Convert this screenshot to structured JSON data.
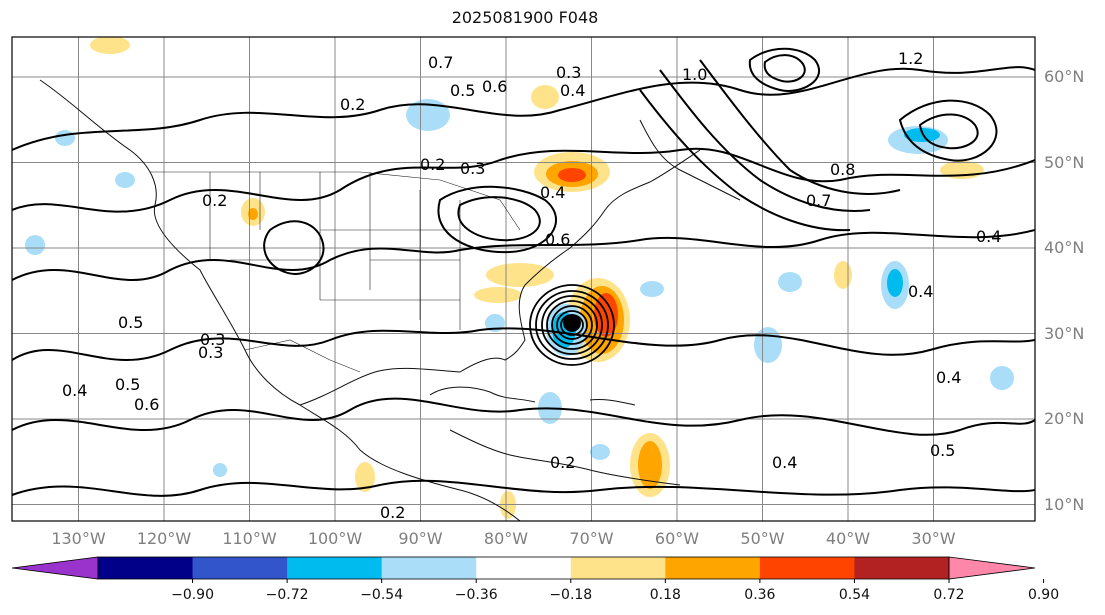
{
  "title": "2025081900 F048",
  "map": {
    "lat_labels": [
      {
        "text": "60°N",
        "lat": 60
      },
      {
        "text": "50°N",
        "lat": 50
      },
      {
        "text": "40°N",
        "lat": 40
      },
      {
        "text": "30°N",
        "lat": 30
      },
      {
        "text": "20°N",
        "lat": 20
      },
      {
        "text": "10°N",
        "lat": 10
      }
    ],
    "lon_labels": [
      {
        "text": "130°W",
        "lon": -130
      },
      {
        "text": "120°W",
        "lon": -120
      },
      {
        "text": "110°W",
        "lon": -110
      },
      {
        "text": "100°W",
        "lon": -100
      },
      {
        "text": "90°W",
        "lon": -90
      },
      {
        "text": "80°W",
        "lon": -80
      },
      {
        "text": "70°W",
        "lon": -70
      },
      {
        "text": "60°W",
        "lon": -60
      },
      {
        "text": "50°W",
        "lon": -50
      },
      {
        "text": "40°W",
        "lon": -40
      },
      {
        "text": "30°W",
        "lon": -30
      }
    ],
    "contour_labels": [
      "0.7",
      "0.5",
      "0.6",
      "0.3",
      "0.4",
      "1.0",
      "1.2",
      "0.2",
      "0.3",
      "0.4",
      "0.8",
      "0.7",
      "0.4",
      "0.5",
      "0.4",
      "0.3",
      "0.2",
      "0.6",
      "0.5",
      "0.4",
      "0.2",
      "0.2",
      "0.4",
      "0.5",
      "0.6",
      "0.4",
      "0.3",
      "0.2"
    ]
  },
  "colorbar": {
    "ticks": [
      "−0.90",
      "−0.72",
      "−0.54",
      "−0.36",
      "−0.18",
      "0.18",
      "0.36",
      "0.54",
      "0.72",
      "0.90"
    ],
    "low_extend_color": "#9933cc",
    "high_extend_color": "#ff88aa",
    "colors": [
      "#9933cc",
      "#000088",
      "#3355cc",
      "#00bbee",
      "#aaddf8",
      "#ffffff",
      "#ffe38a",
      "#ffa500",
      "#ff4400",
      "#b22222",
      "#ff88aa"
    ]
  }
}
